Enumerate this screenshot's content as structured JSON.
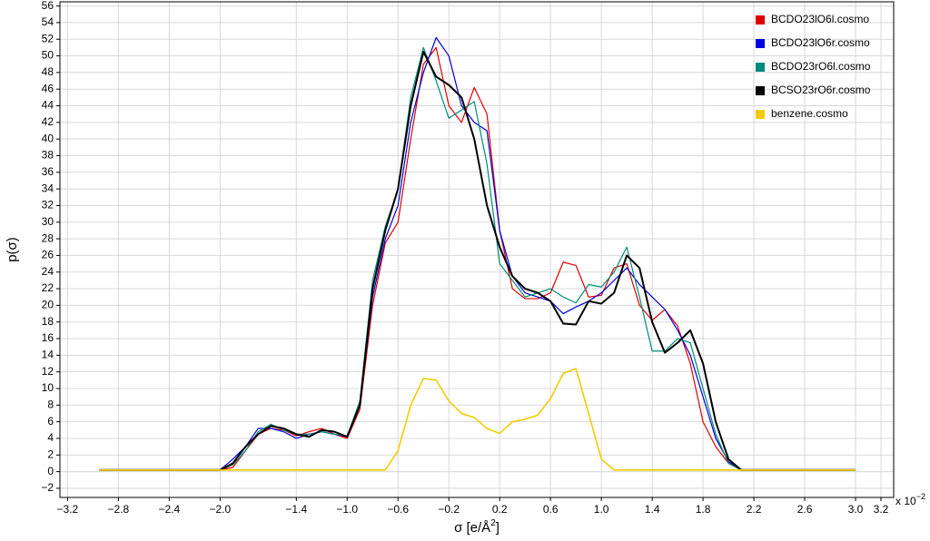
{
  "chart_data": {
    "type": "line",
    "xlabel_pre": "σ [e/Å",
    "xlabel_sup": "2",
    "xlabel_post": "]",
    "ylabel": "p(σ)",
    "x_multiplier": "x 10",
    "x_multiplier_exp": "−2",
    "x": [
      -2.95,
      -2.0,
      -1.9,
      -1.8,
      -1.7,
      -1.6,
      -1.5,
      -1.4,
      -1.3,
      -1.2,
      -1.1,
      -1.0,
      -0.9,
      -0.8,
      -0.7,
      -0.6,
      -0.5,
      -0.4,
      -0.3,
      -0.2,
      -0.1,
      0,
      0.1,
      0.2,
      0.3,
      0.4,
      0.5,
      0.6,
      0.7,
      0.8,
      0.9,
      1.0,
      1.1,
      1.2,
      1.3,
      1.4,
      1.5,
      1.6,
      1.7,
      1.8,
      1.9,
      2.0,
      2.1,
      3.0
    ],
    "series": [
      {
        "name": "BCDO23lO6l.cosmo",
        "color": "#e00000",
        "width": 1.2,
        "values": [
          0.2,
          0.2,
          0.5,
          2.5,
          4.5,
          5.2,
          5,
          4.3,
          4.8,
          5.2,
          4.5,
          4,
          7.5,
          20,
          27.5,
          30,
          40,
          49,
          51,
          44,
          42,
          46.2,
          43,
          29,
          22,
          20.8,
          20.8,
          21.5,
          25.2,
          24.8,
          21,
          21.2,
          24.5,
          25,
          20,
          18.2,
          19.5,
          17.5,
          13,
          6,
          3,
          1,
          0.2,
          0.2
        ]
      },
      {
        "name": "BCDO23lO6r.cosmo",
        "color": "#0000e0",
        "width": 1.2,
        "values": [
          0.2,
          0.2,
          1.5,
          3,
          5.2,
          5.2,
          4.8,
          4,
          4.5,
          4.8,
          4.5,
          4.2,
          8,
          21,
          28,
          32,
          42,
          48,
          52.2,
          50,
          44,
          42,
          41,
          29,
          23.5,
          21.5,
          21,
          20.5,
          19,
          19.8,
          20.5,
          21.5,
          23,
          24.5,
          22.5,
          21,
          19.5,
          17,
          14,
          9,
          4,
          1.2,
          0.2,
          0.2
        ]
      },
      {
        "name": "BCDO23rO6l.cosmo",
        "color": "#008b7a",
        "width": 1.2,
        "values": [
          0.2,
          0.2,
          0.8,
          2.5,
          4.8,
          5.7,
          5,
          4.5,
          4.5,
          4.8,
          4.5,
          4.3,
          8.5,
          23,
          29.5,
          34,
          45,
          51,
          47,
          42.5,
          43.5,
          44.5,
          37,
          25,
          23,
          21,
          21.5,
          22,
          21,
          20.3,
          22.5,
          22.2,
          24,
          27,
          21,
          14.5,
          14.5,
          16,
          15.5,
          10,
          4.5,
          1,
          0.2,
          0.2
        ]
      },
      {
        "name": "BCSO23rO6r.cosmo",
        "color": "#000000",
        "width": 2,
        "values": [
          0.2,
          0.2,
          1,
          3,
          4.5,
          5.5,
          5.2,
          4.5,
          4.2,
          5,
          4.8,
          4.2,
          8,
          22,
          29,
          34,
          44,
          50.5,
          47.5,
          46.5,
          45,
          40,
          32,
          27,
          23.5,
          22,
          21.5,
          20.5,
          17.8,
          17.7,
          20.5,
          20.2,
          21.5,
          26,
          24.5,
          18,
          14.3,
          15.5,
          17,
          13,
          6,
          1.5,
          0.2,
          0.2
        ]
      },
      {
        "name": "benzene.cosmo",
        "color": "#f2cc00",
        "width": 1.6,
        "values": [
          0.2,
          0.2,
          0.2,
          0.2,
          0.2,
          0.2,
          0.2,
          0.2,
          0.2,
          0.2,
          0.2,
          0.2,
          0.2,
          0.2,
          0.2,
          2.5,
          8,
          11.2,
          11,
          8.5,
          7,
          6.5,
          5.2,
          4.6,
          6,
          6.3,
          6.8,
          8.8,
          11.8,
          12.4,
          7,
          1.5,
          0.2,
          0.2,
          0.2,
          0.2,
          0.2,
          0.2,
          0.2,
          0.2,
          0.2,
          0.2,
          0.2,
          0.2
        ]
      }
    ],
    "xlim": [
      -3.26,
      3.3
    ],
    "xticks": [
      {
        "value": -3.2,
        "label": "−3.2"
      },
      {
        "value": -2.8,
        "label": "−2.8"
      },
      {
        "value": -2.4,
        "label": "−2.4"
      },
      {
        "value": -2.0,
        "label": "−2.0"
      },
      {
        "value": -1.4,
        "label": "−1.4"
      },
      {
        "value": -1.0,
        "label": "−1.0"
      },
      {
        "value": -0.6,
        "label": "−0.6"
      },
      {
        "value": -0.2,
        "label": "−0.2"
      },
      0.2,
      0.6,
      {
        "value": 1.0,
        "label": "1.0"
      },
      1.4,
      1.8,
      2.2,
      2.6,
      {
        "value": 3.0,
        "label": "3.0"
      },
      3.2
    ],
    "ylim": [
      -3.1,
      56.5
    ],
    "yticks": [
      {
        "value": -2,
        "label": "−2"
      },
      0,
      2,
      4,
      6,
      8,
      10,
      12,
      14,
      16,
      18,
      20,
      22,
      24,
      26,
      28,
      30,
      32,
      34,
      36,
      38,
      40,
      42,
      44,
      46,
      48,
      50,
      52,
      54,
      56
    ],
    "grid": true,
    "legend": "upper right"
  }
}
